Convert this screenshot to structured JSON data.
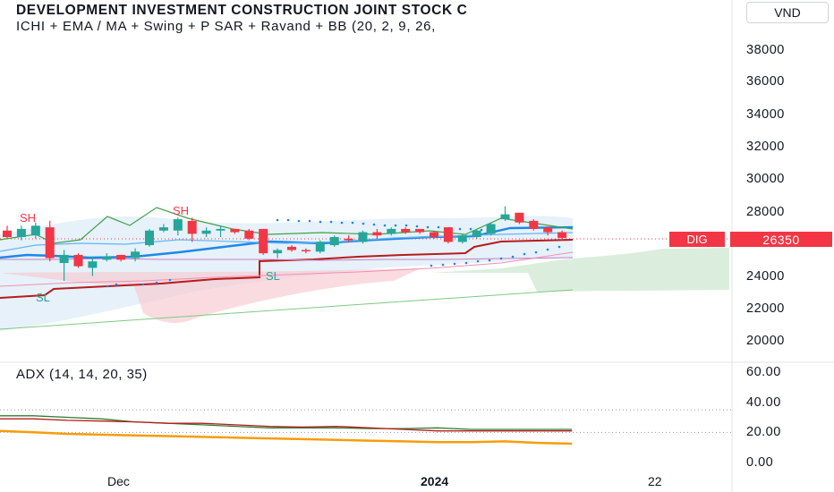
{
  "header": {
    "title": "DEVELOPMENT INVESTMENT CONSTRUCTION JOINT STOCK C",
    "indicators": "ICHI + EMA / MA + Swing + P SAR + Ravand  + BB  (20, 2, 9, 26,",
    "currency": "VND"
  },
  "price_tag": {
    "symbol": "DIG",
    "price": "26350"
  },
  "swing_markers": [
    {
      "text": "SH",
      "color": "#f23645"
    },
    {
      "text": "SH",
      "color": "#f23645"
    },
    {
      "text": "SL",
      "color": "#26a69a"
    },
    {
      "text": "SL",
      "color": "#26a69a"
    }
  ],
  "adx_label": "ADX (14, 14, 20, 35)",
  "x_axis_labels": [
    "Dec",
    "2024",
    "22"
  ],
  "chart_data": [
    {
      "type": "candlestick",
      "title": "DEVELOPMENT INVESTMENT CONSTRUCTION JOINT STOCK C",
      "ylim": [
        19000,
        39500
      ],
      "yticks": [
        20000,
        22000,
        24000,
        26000,
        28000,
        30000,
        32000,
        34000,
        36000,
        38000
      ],
      "ytick_labels": [
        "20000",
        "22000",
        "24000",
        "26000",
        "28000",
        "30000",
        "32000",
        "34000",
        "36000",
        "38000"
      ],
      "last_price": 26350,
      "candles": [
        {
          "o": 26800,
          "h": 27100,
          "l": 26300,
          "c": 26400
        },
        {
          "o": 26400,
          "h": 27100,
          "l": 26200,
          "c": 26900
        },
        {
          "o": 26500,
          "h": 27300,
          "l": 26300,
          "c": 27100
        },
        {
          "o": 27000,
          "h": 27400,
          "l": 24900,
          "c": 25100
        },
        {
          "o": 24800,
          "h": 25600,
          "l": 23700,
          "c": 25300
        },
        {
          "o": 25300,
          "h": 25400,
          "l": 24500,
          "c": 24600
        },
        {
          "o": 24500,
          "h": 25200,
          "l": 24000,
          "c": 24900
        },
        {
          "o": 25000,
          "h": 25400,
          "l": 24900,
          "c": 25200
        },
        {
          "o": 25300,
          "h": 25300,
          "l": 24900,
          "c": 25000
        },
        {
          "o": 25100,
          "h": 25700,
          "l": 24900,
          "c": 25500
        },
        {
          "o": 25900,
          "h": 26900,
          "l": 25800,
          "c": 26800
        },
        {
          "o": 26800,
          "h": 27200,
          "l": 26700,
          "c": 27000
        },
        {
          "o": 26800,
          "h": 27600,
          "l": 26500,
          "c": 27500
        },
        {
          "o": 27400,
          "h": 27600,
          "l": 26100,
          "c": 26600
        },
        {
          "o": 26600,
          "h": 27000,
          "l": 26400,
          "c": 26800
        },
        {
          "o": 26800,
          "h": 27100,
          "l": 26400,
          "c": 26900
        },
        {
          "o": 26900,
          "h": 26900,
          "l": 26600,
          "c": 26700
        },
        {
          "o": 26800,
          "h": 26900,
          "l": 26200,
          "c": 26300
        },
        {
          "o": 26900,
          "h": 26900,
          "l": 25300,
          "c": 25400
        },
        {
          "o": 25400,
          "h": 25700,
          "l": 25100,
          "c": 25600
        },
        {
          "o": 25800,
          "h": 25900,
          "l": 25500,
          "c": 25600
        },
        {
          "o": 25600,
          "h": 25700,
          "l": 25400,
          "c": 25550
        },
        {
          "o": 25500,
          "h": 26200,
          "l": 25400,
          "c": 26100
        },
        {
          "o": 25900,
          "h": 26500,
          "l": 25800,
          "c": 26400
        },
        {
          "o": 26300,
          "h": 26500,
          "l": 26100,
          "c": 26200
        },
        {
          "o": 26100,
          "h": 26800,
          "l": 26000,
          "c": 26700
        },
        {
          "o": 26700,
          "h": 26900,
          "l": 26300,
          "c": 26500
        },
        {
          "o": 26600,
          "h": 27000,
          "l": 26500,
          "c": 26900
        },
        {
          "o": 26900,
          "h": 27000,
          "l": 26600,
          "c": 26700
        },
        {
          "o": 26900,
          "h": 26900,
          "l": 26600,
          "c": 26700
        },
        {
          "o": 26700,
          "h": 26800,
          "l": 26300,
          "c": 26400
        },
        {
          "o": 27000,
          "h": 27000,
          "l": 26000,
          "c": 26100
        },
        {
          "o": 26100,
          "h": 26600,
          "l": 26000,
          "c": 26500
        },
        {
          "o": 26400,
          "h": 26900,
          "l": 26300,
          "c": 26800
        },
        {
          "o": 26600,
          "h": 27300,
          "l": 26500,
          "c": 27200
        },
        {
          "o": 27500,
          "h": 28300,
          "l": 27400,
          "c": 27800
        },
        {
          "o": 27900,
          "h": 27900,
          "l": 27200,
          "c": 27300
        },
        {
          "o": 27400,
          "h": 27500,
          "l": 26800,
          "c": 26900
        },
        {
          "o": 27000,
          "h": 27000,
          "l": 26500,
          "c": 26700
        },
        {
          "o": 26700,
          "h": 26800,
          "l": 26200,
          "c": 26350
        }
      ]
    },
    {
      "type": "line",
      "title": "ADX (14, 14, 20, 35)",
      "ylim": [
        0,
        60
      ],
      "yticks": [
        0,
        20,
        40,
        60
      ],
      "ytick_labels": [
        "0.00",
        "20.00",
        "40.00",
        "60.00"
      ],
      "hlines": [
        20,
        35
      ],
      "series": [
        {
          "color": "#2e7d32",
          "values": [
            31,
            31,
            30,
            29,
            27,
            26,
            25,
            24,
            23,
            23,
            23,
            22.5,
            22.5,
            23,
            22,
            22,
            22,
            22
          ]
        },
        {
          "color": "#b71c1c",
          "values": [
            29,
            29,
            28,
            27.5,
            27,
            26,
            26,
            25,
            24,
            23.5,
            24,
            23,
            22,
            21,
            21,
            21,
            21,
            21
          ]
        },
        {
          "color": "#f59d0b",
          "values": [
            21,
            20,
            19,
            18.5,
            18,
            17.5,
            17,
            16.5,
            16,
            15.5,
            15,
            14.5,
            14,
            13.5,
            13.5,
            14,
            13,
            12.5
          ]
        }
      ]
    }
  ]
}
